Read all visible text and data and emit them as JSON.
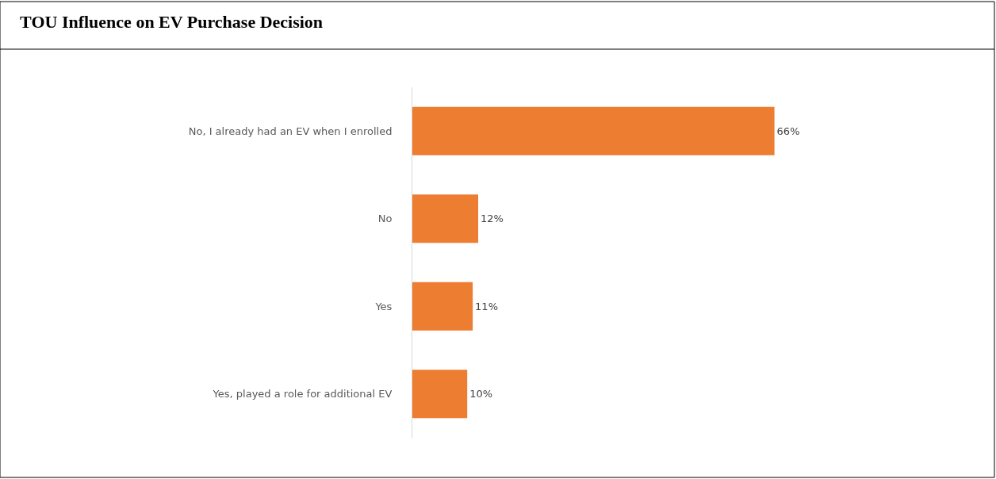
{
  "chart_data": {
    "type": "bar",
    "orientation": "horizontal",
    "title": "TOU Influence on EV Purchase Decision",
    "categories": [
      "No, I already had an EV when I enrolled",
      "No",
      "Yes",
      "Yes, played a role for additional EV"
    ],
    "values": [
      66,
      12,
      11,
      10
    ],
    "color": "#ed7d31",
    "value_labels": [
      "66%",
      "12%",
      "11%",
      "10%"
    ]
  }
}
